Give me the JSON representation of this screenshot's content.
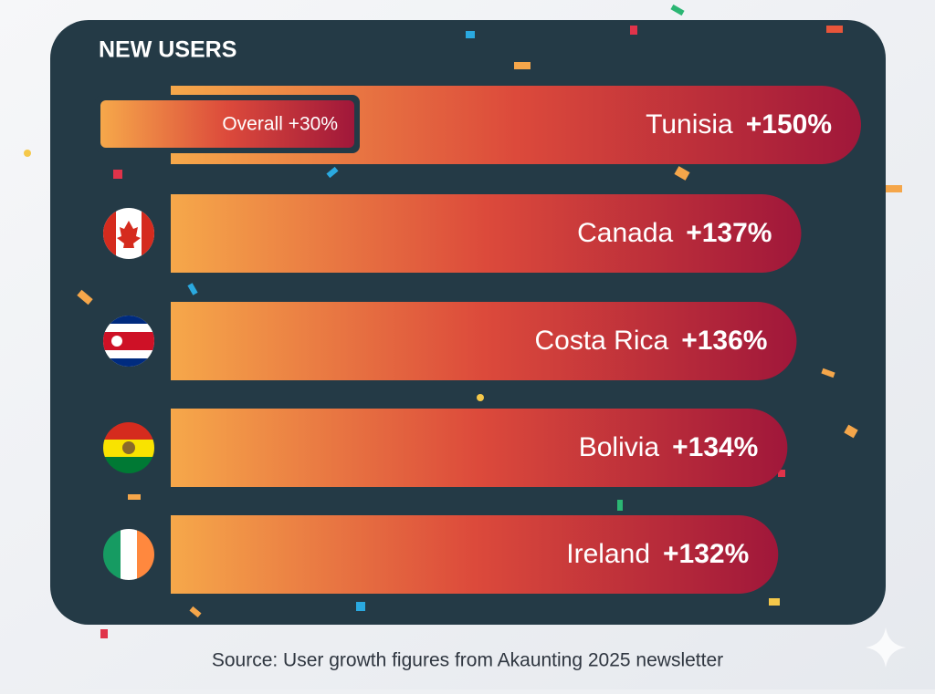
{
  "chart_data": {
    "type": "bar",
    "orientation": "horizontal",
    "title": "NEW USERS",
    "annotation": "Overall +30%",
    "categories": [
      "Tunisia",
      "Canada",
      "Costa Rica",
      "Bolivia",
      "Ireland"
    ],
    "values": [
      150,
      137,
      136,
      134,
      132
    ],
    "value_labels": [
      "+150%",
      "+137%",
      "+136%",
      "+134%",
      "+132%"
    ],
    "gradient": [
      "#f6a84a",
      "#dc4a3b",
      "#a0173a"
    ],
    "source": "Source: User growth figures from Akaunting 2025 newsletter"
  }
}
